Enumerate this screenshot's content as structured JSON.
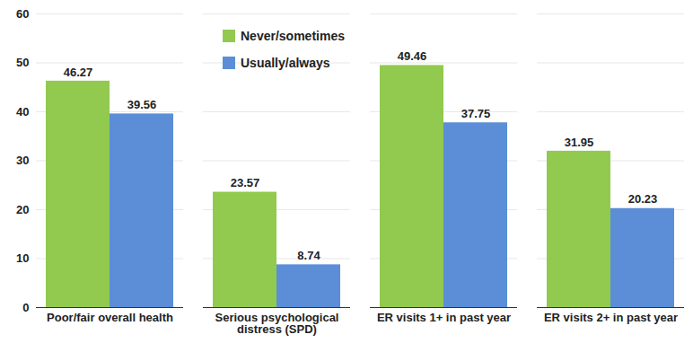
{
  "chart_data": {
    "type": "bar",
    "categories": [
      "Poor/fair overall health",
      "Serious psychological distress (SPD)",
      "ER visits 1+ in past year",
      "ER visits 2+ in past year"
    ],
    "series": [
      {
        "name": "Never/sometimes",
        "color": "#92c94f",
        "values": [
          46.27,
          23.57,
          49.46,
          31.95
        ]
      },
      {
        "name": "Usually/always",
        "color": "#5b8ed6",
        "values": [
          39.56,
          8.74,
          37.75,
          20.23
        ]
      }
    ],
    "ylim": [
      0,
      60
    ],
    "yticks": [
      0,
      10,
      20,
      30,
      40,
      50,
      60
    ],
    "grid": true,
    "data_labels": true,
    "legend": "upper left"
  }
}
